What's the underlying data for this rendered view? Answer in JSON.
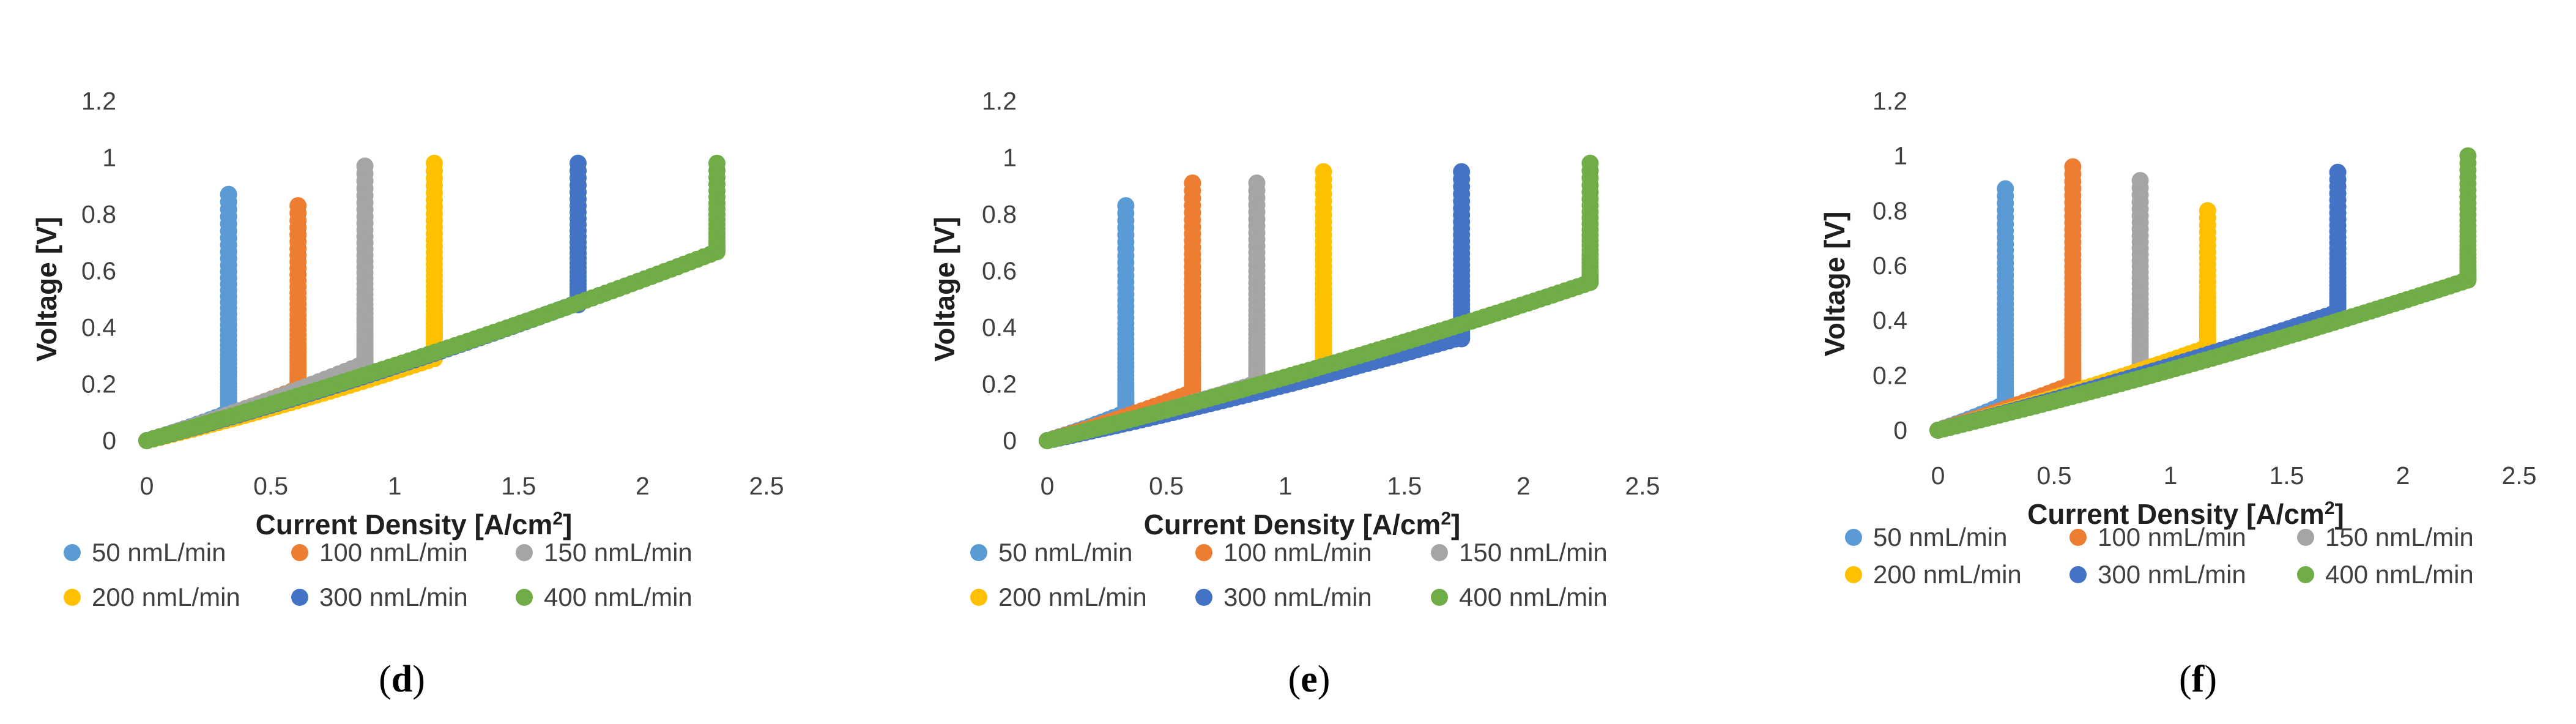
{
  "series_colors": {
    "50 nmL/min": "#5b9bd5",
    "100 nmL/min": "#ed7d31",
    "150 nmL/min": "#a5a5a5",
    "200 nmL/min": "#ffc000",
    "300 nmL/min": "#4472c4",
    "400 nmL/min": "#70ad47"
  },
  "chart_data": [
    {
      "type": "scatter",
      "panel_label": "d",
      "xlabel": "Current Density [A/cm",
      "xlabel_sup": "2",
      "xlabel_suffix": "]",
      "ylabel": "Voltage [V]",
      "xlim": [
        0,
        2.5
      ],
      "ylim": [
        0,
        1.2
      ],
      "xticks": [
        "0",
        "0.5",
        "1",
        "1.5",
        "2",
        "2.5"
      ],
      "yticks": [
        "0",
        "0.2",
        "0.4",
        "0.6",
        "0.8",
        "1",
        "1.2"
      ],
      "legend": [
        "50 nmL/min",
        "100 nmL/min",
        "150 nmL/min",
        "200 nmL/min",
        "300 nmL/min",
        "400 nmL/min"
      ],
      "series": [
        {
          "name": "50 nmL/min",
          "limit_current": 0.33,
          "v_at_limit": 0.1,
          "v_max": 0.87,
          "slope": 0.3
        },
        {
          "name": "100 nmL/min",
          "limit_current": 0.61,
          "v_at_limit": 0.2,
          "v_max": 0.83,
          "slope": 0.3
        },
        {
          "name": "150 nmL/min",
          "limit_current": 0.88,
          "v_at_limit": 0.28,
          "v_max": 0.97,
          "slope": 0.31
        },
        {
          "name": "200 nmL/min",
          "limit_current": 1.16,
          "v_at_limit": 0.29,
          "v_max": 0.98,
          "slope": 0.25
        },
        {
          "name": "300 nmL/min",
          "limit_current": 1.74,
          "v_at_limit": 0.48,
          "v_max": 0.98,
          "slope": 0.28
        },
        {
          "name": "400 nmL/min",
          "limit_current": 2.3,
          "v_at_limit": 0.67,
          "v_max": 0.98,
          "slope": 0.29
        }
      ]
    },
    {
      "type": "scatter",
      "panel_label": "e",
      "xlabel": "Current Density [A/cm",
      "xlabel_sup": "2",
      "xlabel_suffix": "]",
      "ylabel": "Voltage [V]",
      "xlim": [
        0,
        2.5
      ],
      "ylim": [
        0,
        1.2
      ],
      "xticks": [
        "0",
        "0.5",
        "1",
        "1.5",
        "2",
        "2.5"
      ],
      "yticks": [
        "0",
        "0.2",
        "0.4",
        "0.6",
        "0.8",
        "1",
        "1.2"
      ],
      "legend": [
        "50 nmL/min",
        "100 nmL/min",
        "150 nmL/min",
        "200 nmL/min",
        "300 nmL/min",
        "400 nmL/min"
      ],
      "series": [
        {
          "name": "50 nmL/min",
          "limit_current": 0.33,
          "v_at_limit": 0.1,
          "v_max": 0.83,
          "slope": 0.3
        },
        {
          "name": "100 nmL/min",
          "limit_current": 0.61,
          "v_at_limit": 0.17,
          "v_max": 0.91,
          "slope": 0.28
        },
        {
          "name": "150 nmL/min",
          "limit_current": 0.88,
          "v_at_limit": 0.2,
          "v_max": 0.91,
          "slope": 0.23
        },
        {
          "name": "200 nmL/min",
          "limit_current": 1.16,
          "v_at_limit": 0.25,
          "v_max": 0.95,
          "slope": 0.22
        },
        {
          "name": "300 nmL/min",
          "limit_current": 1.74,
          "v_at_limit": 0.36,
          "v_max": 0.95,
          "slope": 0.21
        },
        {
          "name": "400 nmL/min",
          "limit_current": 2.28,
          "v_at_limit": 0.56,
          "v_max": 0.98,
          "slope": 0.245
        }
      ]
    },
    {
      "type": "scatter",
      "panel_label": "f",
      "xlabel": "Current Density [A/cm",
      "xlabel_sup": "2",
      "xlabel_suffix": "]",
      "ylabel": "Voltage [V]",
      "xlim": [
        0,
        2.5
      ],
      "ylim": [
        0,
        1.2
      ],
      "xticks": [
        "0",
        "0.5",
        "1",
        "1.5",
        "2",
        "2.5"
      ],
      "yticks": [
        "0",
        "0.2",
        "0.4",
        "0.6",
        "0.8",
        "1",
        "1.2"
      ],
      "legend": [
        "50 nmL/min",
        "100 nmL/min",
        "150 nmL/min",
        "200 nmL/min",
        "300 nmL/min",
        "400 nmL/min"
      ],
      "series": [
        {
          "name": "50 nmL/min",
          "limit_current": 0.29,
          "v_at_limit": 0.1,
          "v_max": 0.88,
          "slope": 0.33
        },
        {
          "name": "100 nmL/min",
          "limit_current": 0.58,
          "v_at_limit": 0.17,
          "v_max": 0.96,
          "slope": 0.29
        },
        {
          "name": "150 nmL/min",
          "limit_current": 0.87,
          "v_at_limit": 0.21,
          "v_max": 0.91,
          "slope": 0.24
        },
        {
          "name": "200 nmL/min",
          "limit_current": 1.16,
          "v_at_limit": 0.3,
          "v_max": 0.8,
          "slope": 0.26
        },
        {
          "name": "300 nmL/min",
          "limit_current": 1.72,
          "v_at_limit": 0.43,
          "v_max": 0.94,
          "slope": 0.25
        },
        {
          "name": "400 nmL/min",
          "limit_current": 2.28,
          "v_at_limit": 0.55,
          "v_max": 1.0,
          "slope": 0.24
        }
      ]
    }
  ]
}
